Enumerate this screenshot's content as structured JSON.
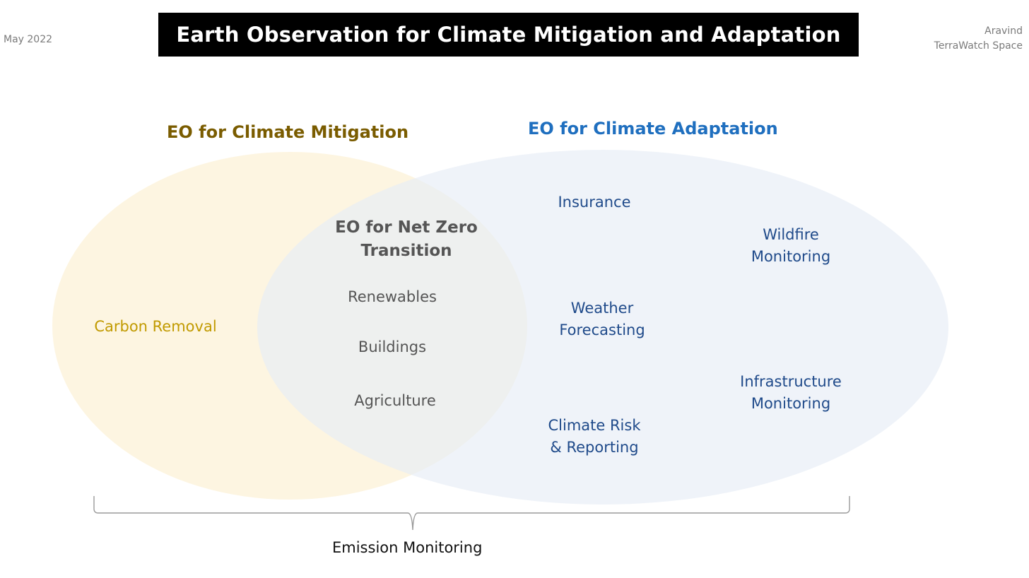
{
  "header": {
    "date": "May 2022",
    "title": "Earth Observation for Climate Mitigation and Adaptation",
    "author_name": "Aravind",
    "author_org": "TerraWatch Space"
  },
  "venn": {
    "mitigation": {
      "title": "EO for Climate Mitigation",
      "fill_color": "#fdf3d9",
      "items": [
        "Carbon Removal"
      ]
    },
    "adaptation": {
      "title": "EO for Climate Adaptation",
      "fill_color": "#e6ecf6",
      "items": [
        "Insurance",
        "Wildfire\nMonitoring",
        "Weather\nForecasting",
        "Infrastructure\nMonitoring",
        "Climate Risk\n& Reporting"
      ]
    },
    "overlap": {
      "title_line1": "EO for Net Zero",
      "title_line2": "Transition",
      "items": [
        "Renewables",
        "Buildings",
        "Agriculture"
      ]
    }
  },
  "bracket": {
    "label": "Emission Monitoring"
  },
  "colors": {
    "title_bar": "#000000",
    "mitigation_title": "#7a5c00",
    "adaptation_title": "#1f6fbf",
    "adaptation_items": "#1f4a8a",
    "carbon_removal": "#c19a00",
    "overlap_text": "#555555"
  }
}
